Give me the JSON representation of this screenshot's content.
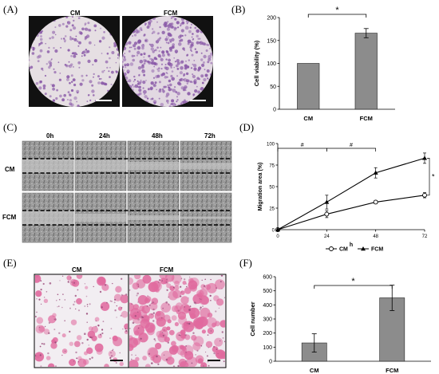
{
  "panels": {
    "A": {
      "label": "(A)",
      "columns": [
        "CM",
        "FCM"
      ]
    },
    "B": {
      "label": "(B)"
    },
    "C": {
      "label": "(C)",
      "columns": [
        "0h",
        "24h",
        "48h",
        "72h"
      ],
      "rows": [
        "CM",
        "FCM"
      ]
    },
    "D": {
      "label": "(D)"
    },
    "E": {
      "label": "(E)",
      "columns": [
        "CM",
        "FCM"
      ]
    },
    "F": {
      "label": "(F)"
    }
  },
  "colors": {
    "bar_fill": "#8c8c8c",
    "crystal_violet": "#8a5aa8",
    "eosin": "#e06a9e"
  },
  "chart_data": [
    {
      "panel": "B",
      "type": "bar",
      "categories": [
        "CM",
        "FCM"
      ],
      "values": [
        100,
        166
      ],
      "errors": [
        0,
        10
      ],
      "ylabel": "Cell viability (%)",
      "xlabel": "",
      "ylim": [
        0,
        200
      ],
      "yticks": [
        0,
        50,
        100,
        150,
        200
      ],
      "annotations": [
        {
          "text": "*",
          "between": [
            "CM",
            "FCM"
          ]
        }
      ]
    },
    {
      "panel": "D",
      "type": "line",
      "x": [
        0,
        24,
        48,
        72
      ],
      "xlabel": "h",
      "ylabel": "Migration area (%)",
      "xlim": [
        0,
        72
      ],
      "ylim": [
        0,
        100
      ],
      "xticks": [
        0,
        24,
        48,
        72
      ],
      "yticks": [
        0,
        25,
        50,
        75,
        100
      ],
      "series": [
        {
          "name": "CM",
          "marker": "open-circle",
          "values": [
            0,
            18,
            32,
            40
          ],
          "errors": [
            0,
            4,
            2,
            3
          ]
        },
        {
          "name": "FCM",
          "marker": "filled-triangle",
          "values": [
            0,
            32,
            66,
            83
          ],
          "errors": [
            0,
            8,
            6,
            6
          ]
        }
      ],
      "annotations": [
        {
          "text": "#",
          "x_from": 0,
          "x_to": 24
        },
        {
          "text": "#",
          "x_from": 24,
          "x_to": 48
        },
        {
          "text": "*",
          "at_x": 72
        }
      ],
      "legend": "bottom"
    },
    {
      "panel": "F",
      "type": "bar",
      "categories": [
        "CM",
        "FCM"
      ],
      "values": [
        130,
        450
      ],
      "errors": [
        65,
        90
      ],
      "ylabel": "Cell number",
      "xlabel": "",
      "ylim": [
        0,
        600
      ],
      "yticks": [
        0,
        100,
        200,
        300,
        400,
        500,
        600
      ],
      "annotations": [
        {
          "text": "*",
          "between": [
            "CM",
            "FCM"
          ]
        }
      ]
    }
  ]
}
